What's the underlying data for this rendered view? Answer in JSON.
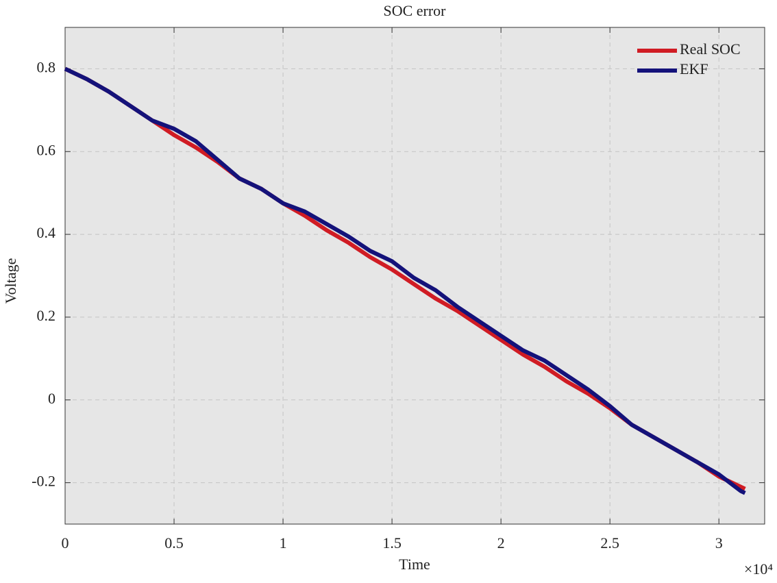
{
  "chart_data": {
    "type": "line",
    "title": "SOC error",
    "x_label": "Time",
    "y_label": "Voltage",
    "x_scale_label": "×10⁴",
    "x": [
      0,
      1000,
      2000,
      3000,
      4000,
      5000,
      6000,
      7000,
      8000,
      9000,
      10000,
      11000,
      12000,
      13000,
      14000,
      15000,
      16000,
      17000,
      18000,
      19000,
      20000,
      21000,
      22000,
      23000,
      24000,
      25000,
      26000,
      27000,
      28000,
      29000,
      30000,
      31000,
      31200
    ],
    "series": [
      {
        "name": "Real SOC",
        "color": "#d01c24",
        "values": [
          0.8,
          0.775,
          0.745,
          0.71,
          0.675,
          0.64,
          0.61,
          0.575,
          0.535,
          0.51,
          0.475,
          0.445,
          0.41,
          0.38,
          0.345,
          0.315,
          0.28,
          0.245,
          0.215,
          0.18,
          0.145,
          0.11,
          0.08,
          0.045,
          0.015,
          -0.02,
          -0.06,
          -0.09,
          -0.12,
          -0.15,
          -0.185,
          -0.21,
          -0.215
        ]
      },
      {
        "name": "EKF",
        "color": "#14127a",
        "values": [
          0.8,
          0.775,
          0.745,
          0.71,
          0.675,
          0.655,
          0.625,
          0.58,
          0.535,
          0.51,
          0.475,
          0.455,
          0.425,
          0.395,
          0.36,
          0.335,
          0.295,
          0.265,
          0.225,
          0.19,
          0.155,
          0.12,
          0.095,
          0.06,
          0.025,
          -0.015,
          -0.06,
          -0.09,
          -0.12,
          -0.15,
          -0.18,
          -0.22,
          -0.225
        ]
      }
    ],
    "xlim": [
      0,
      32100
    ],
    "ylim": [
      -0.3,
      0.9
    ],
    "xticks": [
      0,
      {
        "value": 5000,
        "label": "0.5"
      },
      {
        "value": 10000,
        "label": "1"
      },
      {
        "value": 15000,
        "label": "1.5"
      },
      {
        "value": 20000,
        "label": "2"
      },
      {
        "value": 25000,
        "label": "2.5"
      },
      {
        "value": 30000,
        "label": "3"
      }
    ],
    "yticks": [
      -0.2,
      0,
      0.2,
      0.4,
      0.6,
      0.8
    ],
    "grid": true,
    "legend": "upper right"
  }
}
